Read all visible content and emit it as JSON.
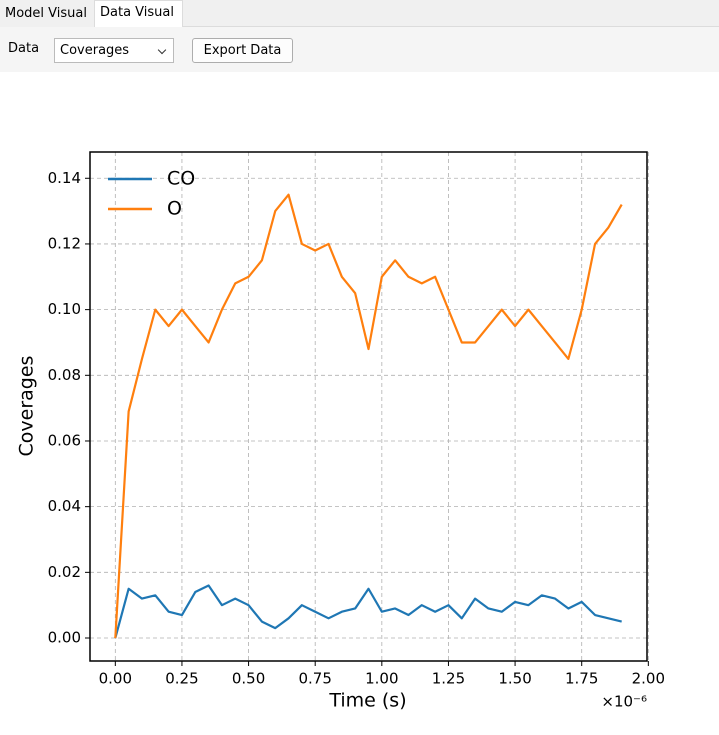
{
  "tabs": [
    "Model Visual",
    "Data Visual"
  ],
  "toolbar": {
    "data_label": "Data",
    "select": "Coverages",
    "button": "Export Data"
  },
  "chart_data": {
    "type": "line",
    "xlabel": "Time (s)",
    "ylabel": "Coverages",
    "x_offset": "×10⁻⁶",
    "x": [
      0,
      0.05,
      0.1,
      0.15,
      0.2,
      0.25,
      0.3,
      0.35,
      0.4,
      0.45,
      0.5,
      0.55,
      0.6,
      0.65,
      0.7,
      0.75,
      0.8,
      0.85,
      0.9,
      0.95,
      1.0,
      1.05,
      1.1,
      1.15,
      1.2,
      1.25,
      1.3,
      1.35,
      1.4,
      1.45,
      1.5,
      1.55,
      1.6,
      1.65,
      1.7,
      1.75,
      1.8,
      1.85,
      1.9
    ],
    "series": [
      {
        "name": "CO",
        "color": "#1f77b4",
        "values": [
          0,
          0.015,
          0.012,
          0.013,
          0.008,
          0.007,
          0.014,
          0.016,
          0.01,
          0.012,
          0.01,
          0.005,
          0.003,
          0.006,
          0.01,
          0.008,
          0.006,
          0.008,
          0.009,
          0.015,
          0.008,
          0.009,
          0.007,
          0.01,
          0.008,
          0.01,
          0.006,
          0.012,
          0.009,
          0.008,
          0.011,
          0.01,
          0.013,
          0.012,
          0.009,
          0.011,
          0.007,
          0.006,
          0.005
        ]
      },
      {
        "name": "O",
        "color": "#ff7f0e",
        "values": [
          0,
          0.069,
          0.085,
          0.1,
          0.095,
          0.1,
          0.095,
          0.09,
          0.1,
          0.108,
          0.11,
          0.115,
          0.13,
          0.135,
          0.12,
          0.118,
          0.12,
          0.11,
          0.105,
          0.088,
          0.11,
          0.115,
          0.11,
          0.108,
          0.11,
          0.1,
          0.09,
          0.09,
          0.095,
          0.1,
          0.095,
          0.1,
          0.095,
          0.09,
          0.085,
          0.1,
          0.12,
          0.125,
          0.132
        ]
      }
    ],
    "xlim": [
      -0.095,
      1.995
    ],
    "xticks": [
      {
        "value": 0,
        "label": "0.00"
      },
      {
        "value": 0.25,
        "label": "0.25"
      },
      {
        "value": 0.5,
        "label": "0.50"
      },
      {
        "value": 0.75,
        "label": "0.75"
      },
      {
        "value": 1,
        "label": "1.00"
      },
      {
        "value": 1.25,
        "label": "1.25"
      },
      {
        "value": 1.5,
        "label": "1.50"
      },
      {
        "value": 1.75,
        "label": "1.75"
      },
      {
        "value": 2,
        "label": "2.00"
      }
    ],
    "ylim": [
      -0.007,
      0.148
    ],
    "yticks": [
      {
        "value": 0,
        "label": "0.00"
      },
      {
        "value": 0.02,
        "label": "0.02"
      },
      {
        "value": 0.04,
        "label": "0.04"
      },
      {
        "value": 0.06,
        "label": "0.06"
      },
      {
        "value": 0.08,
        "label": "0.08"
      },
      {
        "value": 0.1,
        "label": "0.10"
      },
      {
        "value": 0.12,
        "label": "0.12"
      },
      {
        "value": 0.14,
        "label": "0.14"
      }
    ],
    "grid": true,
    "legend": "upper left"
  }
}
